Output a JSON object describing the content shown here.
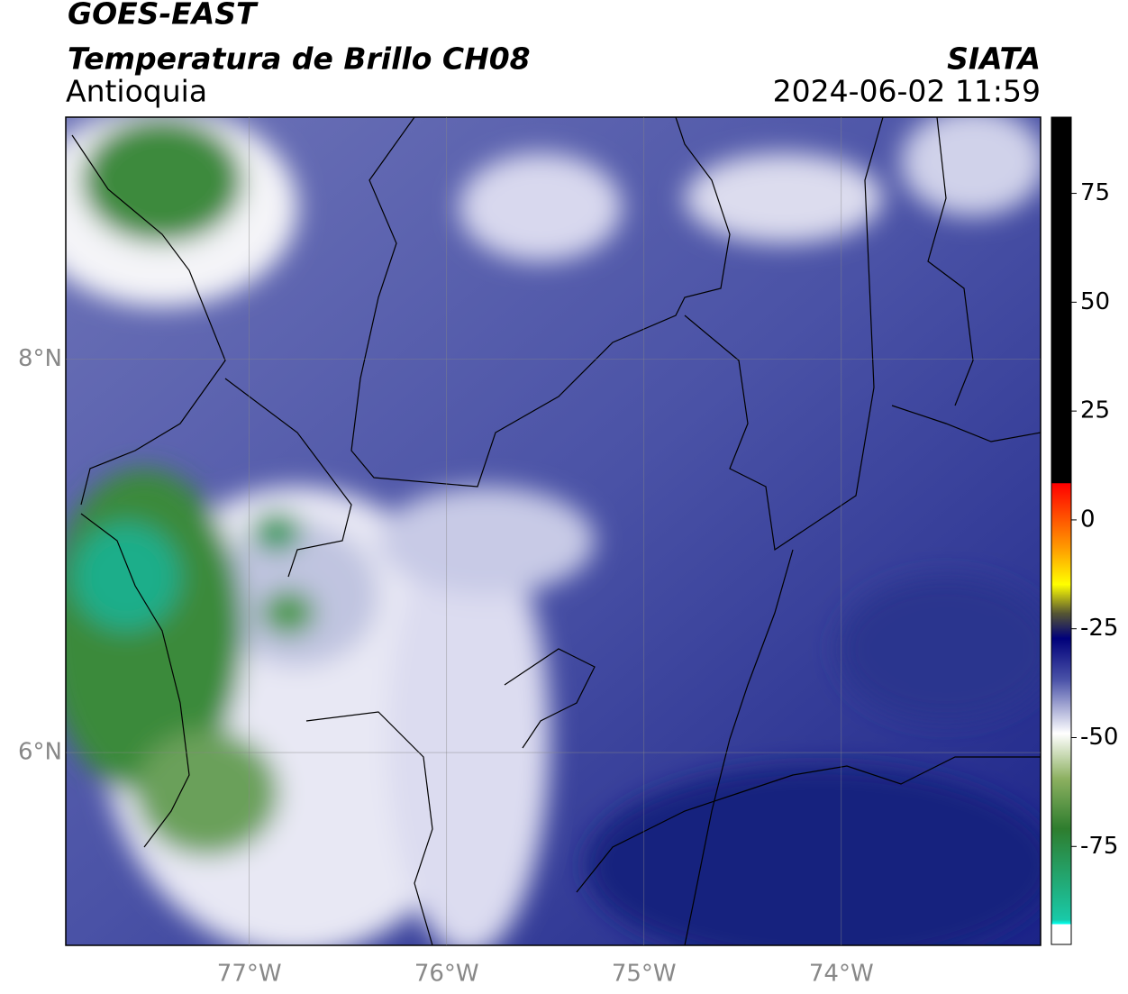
{
  "header": {
    "title": "GOES-EAST",
    "subtitle": "Temperatura de Brillo CH08",
    "region": "Antioquia",
    "source": "SIATA",
    "datetime": "2024-06-02 11:59"
  },
  "chart_data": {
    "type": "map",
    "xlim": [
      -77.93,
      -72.99
    ],
    "ylim": [
      5.02,
      9.23
    ],
    "xticks": [
      {
        "value": -77,
        "label": "77°W"
      },
      {
        "value": -76,
        "label": "76°W"
      },
      {
        "value": -75,
        "label": "75°W"
      },
      {
        "value": -74,
        "label": "74°W"
      }
    ],
    "yticks": [
      {
        "value": 6,
        "label": "6°N"
      },
      {
        "value": 8,
        "label": "8°N"
      }
    ],
    "grid": true,
    "colorbar": {
      "lim": [
        -97.5,
        92.5
      ],
      "ticks": [
        -75,
        -50,
        -25,
        0,
        25,
        50,
        75
      ]
    }
  }
}
